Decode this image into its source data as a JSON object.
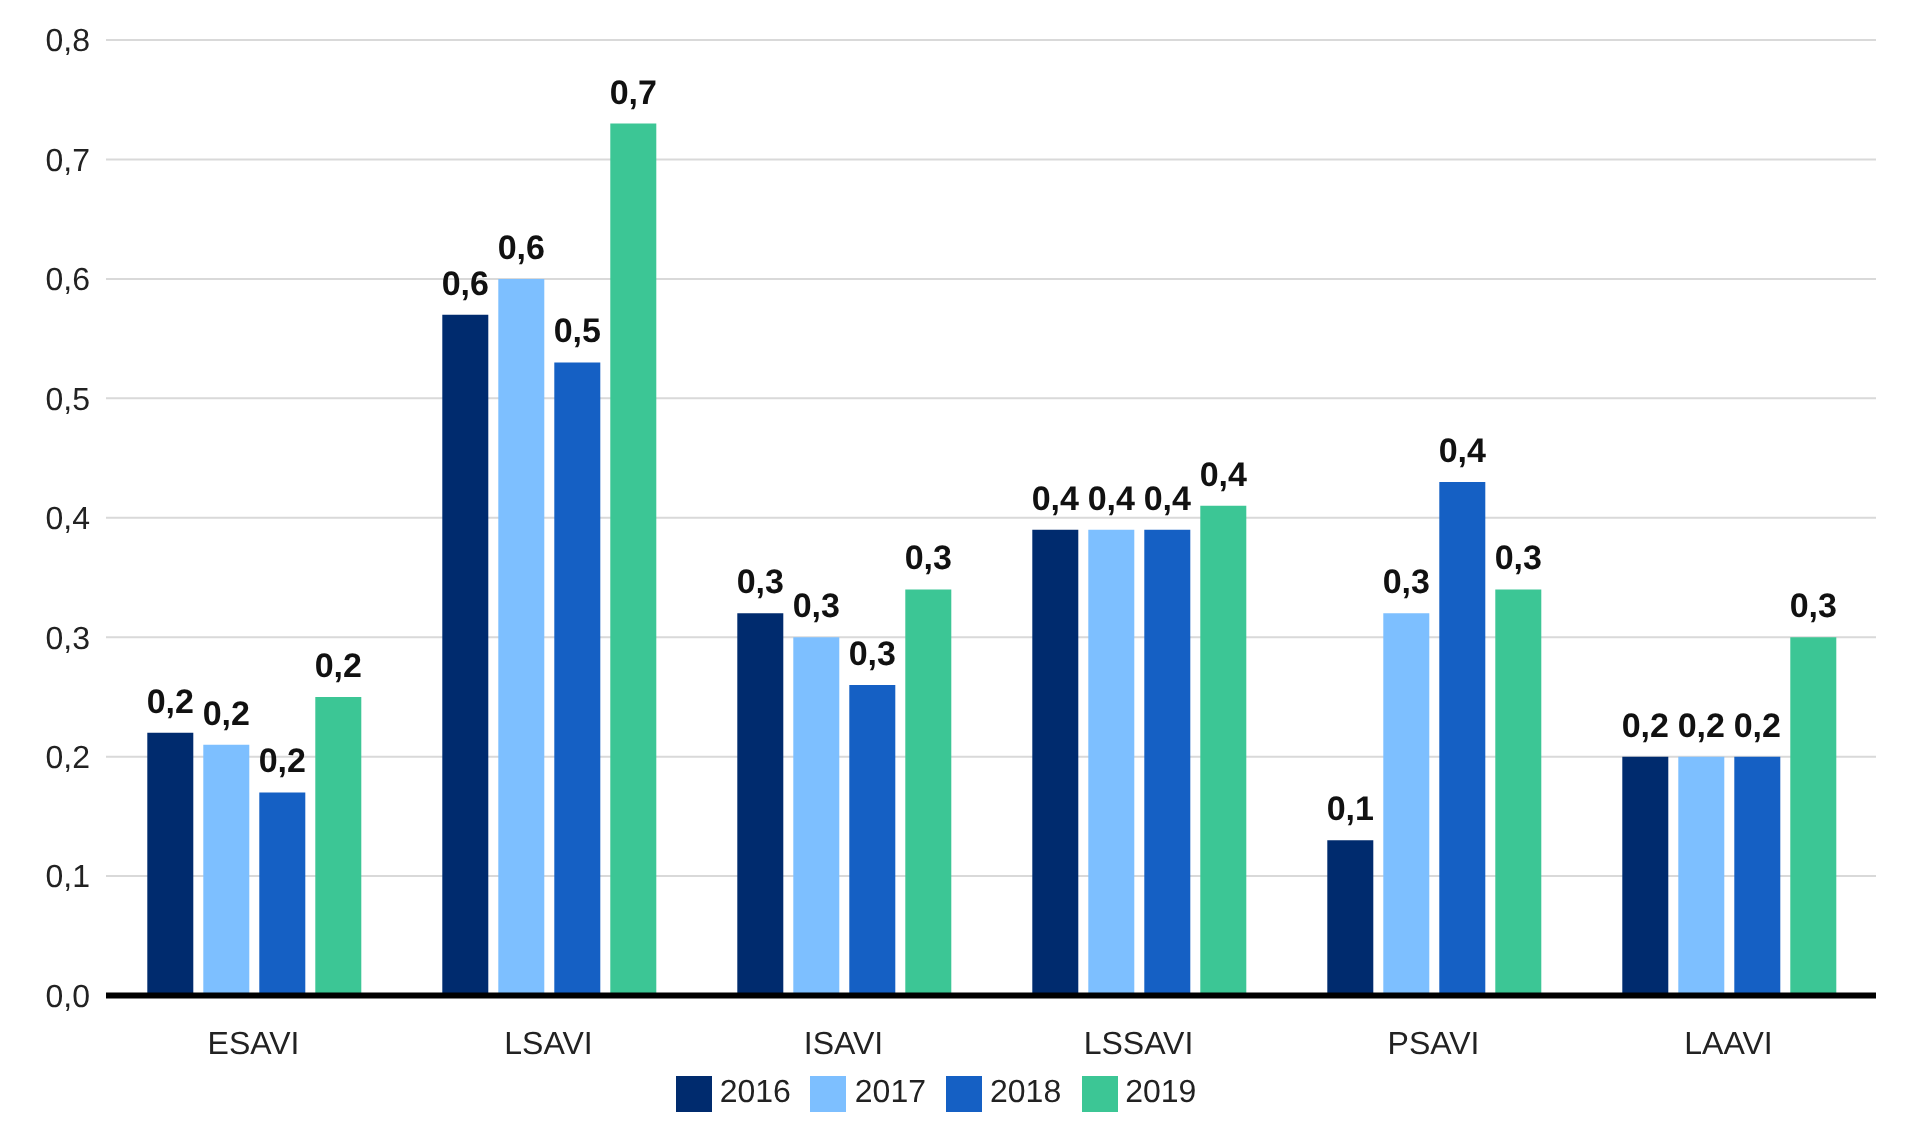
{
  "chart_data": {
    "type": "bar",
    "categories": [
      "ESAVI",
      "LSAVI",
      "ISAVI",
      "LSSAVI",
      "PSAVI",
      "LAAVI"
    ],
    "series": [
      {
        "name": "2016",
        "color": "#002b6e",
        "values": [
          0.22,
          0.57,
          0.32,
          0.39,
          0.13,
          0.2
        ],
        "value_labels": [
          "0,2",
          "0,6",
          "0,3",
          "0,4",
          "0,1",
          "0,2"
        ]
      },
      {
        "name": "2017",
        "color": "#7dbfff",
        "values": [
          0.21,
          0.6,
          0.3,
          0.39,
          0.32,
          0.2
        ],
        "value_labels": [
          "0,2",
          "0,6",
          "0,3",
          "0,4",
          "0,3",
          "0,2"
        ]
      },
      {
        "name": "2018",
        "color": "#1560c4",
        "values": [
          0.17,
          0.53,
          0.26,
          0.39,
          0.43,
          0.2
        ],
        "value_labels": [
          "0,2",
          "0,5",
          "0,3",
          "0,4",
          "0,4",
          "0,2"
        ]
      },
      {
        "name": "2019",
        "color": "#3cc695",
        "values": [
          0.25,
          0.73,
          0.34,
          0.41,
          0.34,
          0.3
        ],
        "value_labels": [
          "0,2",
          "0,7",
          "0,3",
          "0,4",
          "0,3",
          "0,3"
        ]
      }
    ],
    "ylim": [
      0,
      0.8
    ],
    "yticks": [
      {
        "value": 0,
        "label": "0,0"
      },
      {
        "value": 0.1,
        "label": "0,1"
      },
      {
        "value": 0.2,
        "label": "0,2"
      },
      {
        "value": 0.3,
        "label": "0,3"
      },
      {
        "value": 0.4,
        "label": "0,4"
      },
      {
        "value": 0.5,
        "label": "0,5"
      },
      {
        "value": 0.6,
        "label": "0,6"
      },
      {
        "value": 0.7,
        "label": "0,7"
      },
      {
        "value": 0.8,
        "label": "0,8"
      }
    ],
    "grid": "y",
    "legend": "bottom"
  }
}
